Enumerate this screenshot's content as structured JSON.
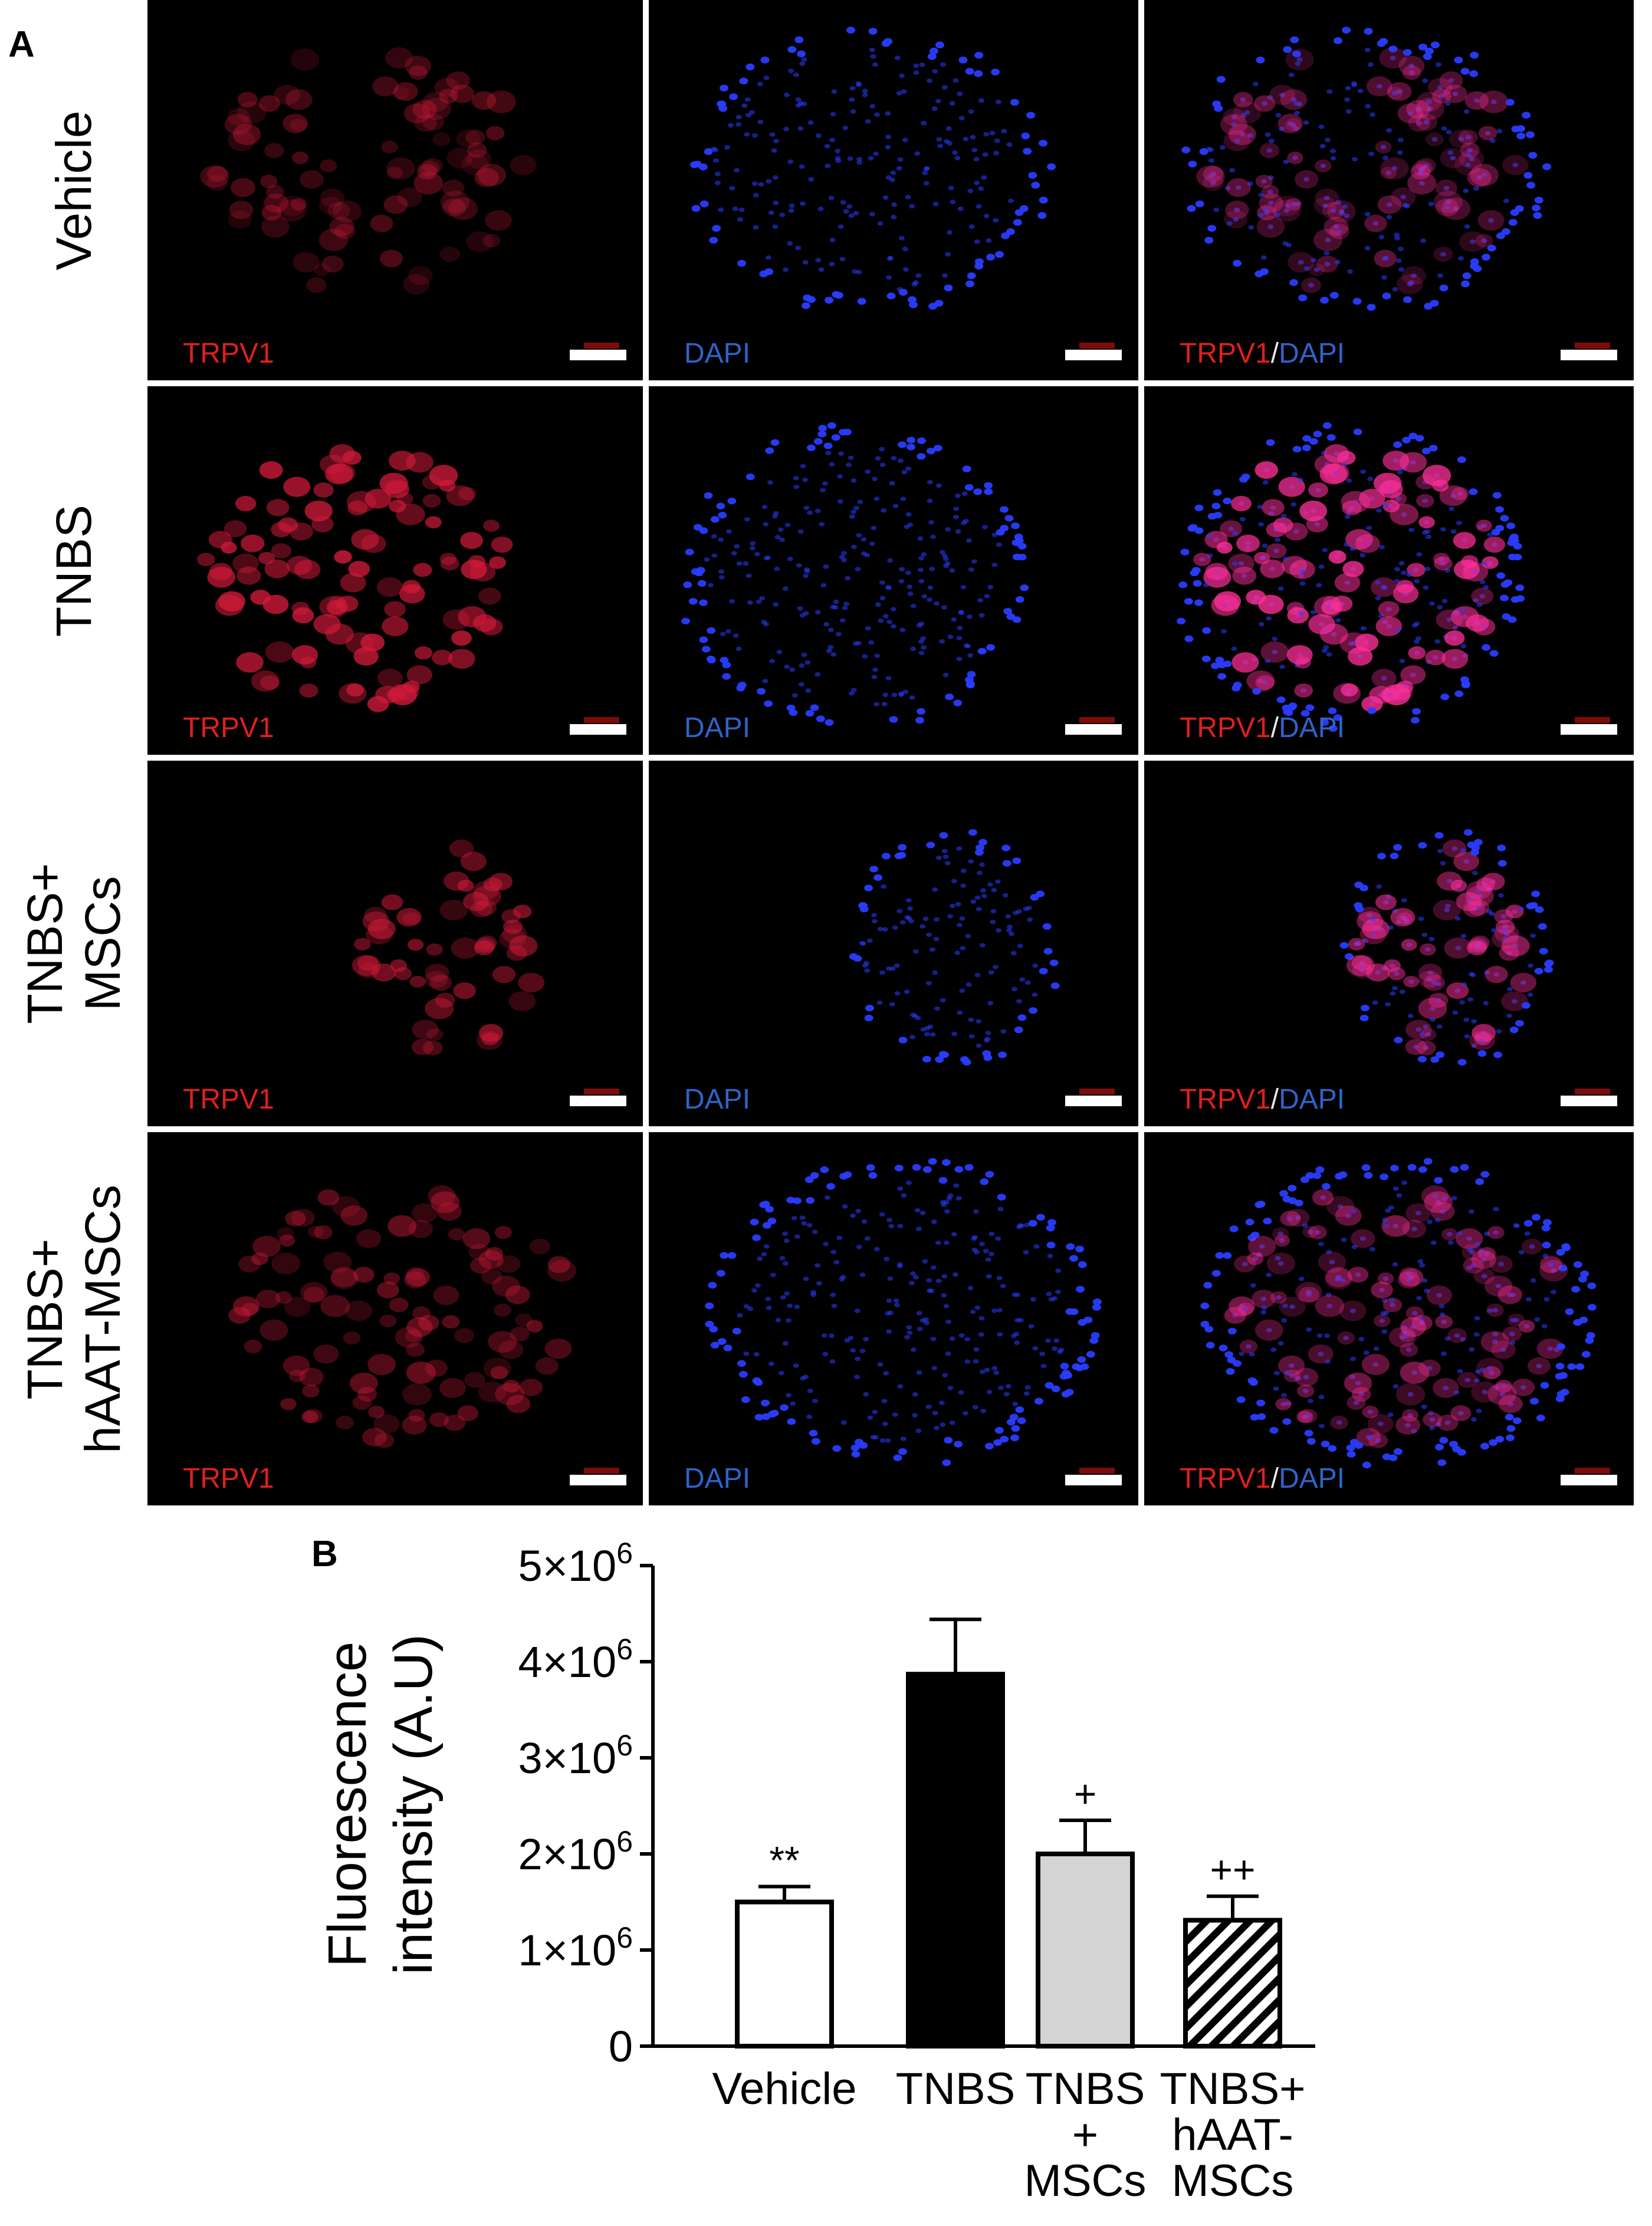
{
  "panel_a": {
    "label": "A",
    "rows": [
      {
        "label_lines": [
          "Vehicle"
        ]
      },
      {
        "label_lines": [
          "TNBS"
        ]
      },
      {
        "label_lines": [
          "TNBS+",
          "MSCs"
        ]
      },
      {
        "label_lines": [
          "TNBS+",
          "hAAT-MSCs"
        ]
      }
    ],
    "channels": {
      "red": "TRPV1",
      "blue": "DAPI",
      "separator": "/"
    },
    "colors": {
      "trpv1": "#e0201c",
      "dapi": "#2f63c9",
      "background": "#000000"
    }
  },
  "panel_b": {
    "label": "B"
  },
  "chart_data": {
    "type": "bar",
    "categories": [
      [
        "Vehicle"
      ],
      [
        "TNBS"
      ],
      [
        "TNBS",
        "+",
        "MSCs"
      ],
      [
        "TNBS+",
        "hAAT-",
        "MSCs"
      ]
    ],
    "values": [
      1500000,
      3870000,
      2000000,
      1310000
    ],
    "errors": [
      160000,
      570000,
      350000,
      250000
    ],
    "bar_fills": [
      "white",
      "black",
      "lightgray",
      "hatched"
    ],
    "significance": [
      "**",
      "",
      "+",
      "++"
    ],
    "ylabel_lines": [
      "Fluorescence",
      "intensity (A.U)"
    ],
    "ylim": [
      0,
      5000000
    ],
    "yticks": [
      {
        "value": 0,
        "base": "0",
        "exp": ""
      },
      {
        "value": 1000000,
        "base": "1×10",
        "exp": "6"
      },
      {
        "value": 2000000,
        "base": "2×10",
        "exp": "6"
      },
      {
        "value": 3000000,
        "base": "3×10",
        "exp": "6"
      },
      {
        "value": 4000000,
        "base": "4×10",
        "exp": "6"
      },
      {
        "value": 5000000,
        "base": "5×10",
        "exp": "6"
      }
    ],
    "grid": false
  }
}
